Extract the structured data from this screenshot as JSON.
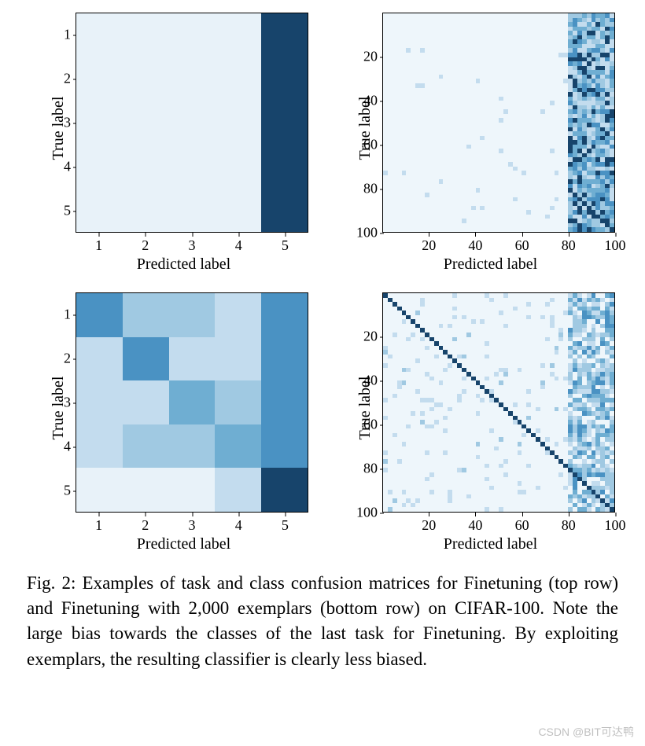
{
  "caption": "Fig. 2: Examples of task and class confusion matrices for Finetuning (top row) and Finetuning with 2,000 exemplars (bottom row) on CIFAR-100. Note the large bias towards the classes of the last task for Finetuning. By exploiting exemplars, the resulting classifier is clearly less biased.",
  "watermark": "CSDN @BIT可达鸭",
  "colors": {
    "bg_light": "#eef6fb",
    "low": "#e8f2f9",
    "med_low": "#c3dcee",
    "med": "#a0c9e2",
    "med_high": "#6faed2",
    "high": "#4a92c3",
    "dark": "#17446b"
  },
  "panels": {
    "tl": {
      "type": "heatmap",
      "rows": 5,
      "cols": 5,
      "xlabel": "Predicted label",
      "ylabel": "True label",
      "xticks": [
        1,
        2,
        3,
        4,
        5
      ],
      "yticks": [
        1,
        2,
        3,
        4,
        5
      ],
      "data": [
        [
          "low",
          "low",
          "low",
          "low",
          "dark"
        ],
        [
          "low",
          "low",
          "low",
          "low",
          "dark"
        ],
        [
          "low",
          "low",
          "low",
          "low",
          "dark"
        ],
        [
          "low",
          "low",
          "low",
          "low",
          "dark"
        ],
        [
          "low",
          "low",
          "low",
          "low",
          "dark"
        ]
      ]
    },
    "tr": {
      "type": "heatmap-dense",
      "rows": 100,
      "cols": 100,
      "xlabel": "Predicted label",
      "ylabel": "True label",
      "xticks": [
        20,
        40,
        60,
        80,
        100
      ],
      "yticks": [
        20,
        40,
        60,
        80,
        100
      ],
      "pattern": "right-band-with-diag",
      "band_start": 80,
      "diag_after": 80
    },
    "bl": {
      "type": "heatmap",
      "rows": 5,
      "cols": 5,
      "xlabel": "Predicted label",
      "ylabel": "True label",
      "xticks": [
        1,
        2,
        3,
        4,
        5
      ],
      "yticks": [
        1,
        2,
        3,
        4,
        5
      ],
      "data": [
        [
          "high",
          "med",
          "med",
          "med_low",
          "high"
        ],
        [
          "med_low",
          "high",
          "med_low",
          "med_low",
          "high"
        ],
        [
          "med_low",
          "med_low",
          "med_high",
          "med",
          "high"
        ],
        [
          "med_low",
          "med",
          "med",
          "med_high",
          "high"
        ],
        [
          "low",
          "low",
          "low",
          "med_low",
          "dark"
        ]
      ]
    },
    "br": {
      "type": "heatmap-dense",
      "rows": 100,
      "cols": 100,
      "xlabel": "Predicted label",
      "ylabel": "True label",
      "xticks": [
        20,
        40,
        60,
        80,
        100
      ],
      "yticks": [
        20,
        40,
        60,
        80,
        100
      ],
      "pattern": "full-diag-with-band",
      "band_start": 80
    }
  }
}
